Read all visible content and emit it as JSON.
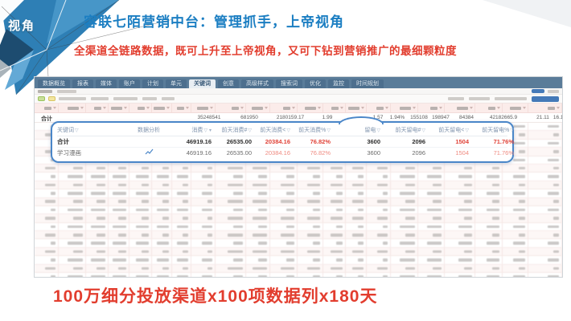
{
  "page": {
    "corner_label": "视角",
    "title": "容联七陌营销中台：管理抓手，上帝视角",
    "subtitle": "全渠道全链路数据，既可上升至上帝视角，又可下钻到营销推广的最细颗粒度",
    "footer": "100万细分投放渠道x100项数据列x180天"
  },
  "colors": {
    "title_blue": "#1b7ec2",
    "accent_red": "#e23d2e",
    "tabbar_bg": "#5a7c99",
    "callout_border": "#4a86c8",
    "value_red": "#e04338"
  },
  "dashboard": {
    "tabs": [
      {
        "label": "数据概览",
        "active": false
      },
      {
        "label": "报表",
        "active": false
      },
      {
        "label": "媒体",
        "active": false
      },
      {
        "label": "账户",
        "active": false
      },
      {
        "label": "计划",
        "active": false
      },
      {
        "label": "单元",
        "active": false
      },
      {
        "label": "关键词",
        "active": true
      },
      {
        "label": "创意",
        "active": false
      },
      {
        "label": "高级样式",
        "active": false
      },
      {
        "label": "搜索词",
        "active": false
      },
      {
        "label": "优化",
        "active": false
      },
      {
        "label": "监控",
        "active": false
      },
      {
        "label": "时间规划",
        "active": false
      }
    ],
    "summary": {
      "label": "合计",
      "values": [
        "35248541",
        "681950",
        "2180159.17",
        "1.99",
        "1.57",
        "1.94%",
        "155108",
        "198947",
        "84384",
        "42182665.9",
        "21.11",
        "16.14"
      ]
    }
  },
  "callout": {
    "headers": [
      {
        "label": "关键词",
        "filter": true,
        "sort": false
      },
      {
        "label": "数据分析",
        "filter": false,
        "sort": false
      },
      {
        "label": "消费",
        "filter": true,
        "sort": true
      },
      {
        "label": "前天消费#",
        "filter": true,
        "sort": false
      },
      {
        "label": "前天消费<",
        "filter": true,
        "sort": false
      },
      {
        "label": "前天消费%",
        "filter": true,
        "sort": false
      },
      {
        "label": "留电",
        "filter": true,
        "sort": false
      },
      {
        "label": "前天留电#",
        "filter": true,
        "sort": false
      },
      {
        "label": "前天留电<",
        "filter": true,
        "sort": false
      },
      {
        "label": "前天留电%",
        "filter": true,
        "sort": false
      }
    ],
    "rows": [
      {
        "name": "合计",
        "total": true,
        "has_chart_icon": false,
        "cells": [
          "46919.16",
          "26535.00",
          "20384.16",
          "76.82%",
          "3600",
          "2096",
          "1504",
          "71.76%"
        ]
      },
      {
        "name": "学习漫画",
        "total": false,
        "has_chart_icon": true,
        "cells": [
          "46919.16",
          "26535.00",
          "20384.16",
          "76.82%",
          "3600",
          "2096",
          "1504",
          "71.76%"
        ]
      }
    ]
  }
}
